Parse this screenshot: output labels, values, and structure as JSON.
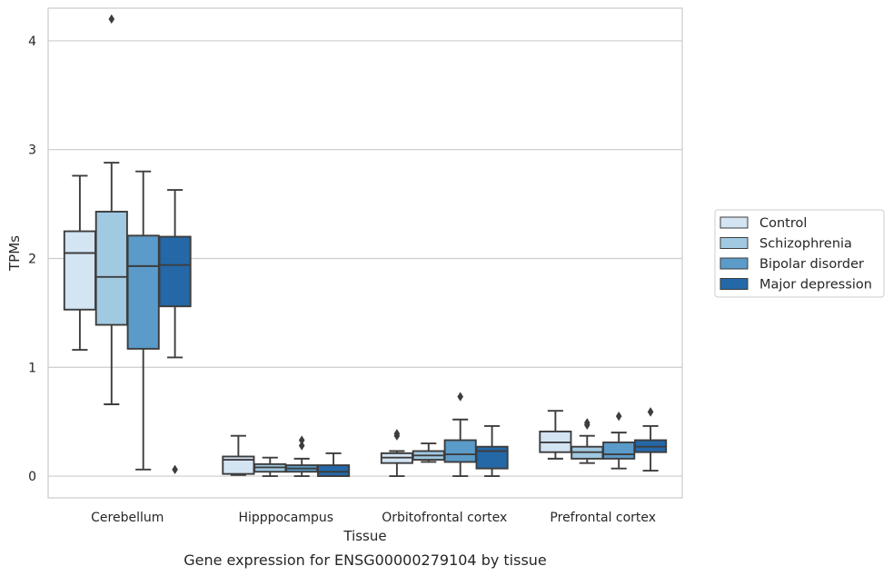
{
  "chart_data": {
    "type": "box",
    "title": "Gene expression for ENSG00000279104 by tissue",
    "xlabel": "Tissue",
    "ylabel": "TPMs",
    "ylim": [
      -0.2,
      4.3
    ],
    "yticks": [
      0,
      1,
      2,
      3,
      4
    ],
    "grid": true,
    "legend_position": "right",
    "categories": [
      "Cerebellum",
      "Hipppocampus",
      "Orbitofrontal cortex",
      "Prefrontal cortex"
    ],
    "series": [
      {
        "name": "Control",
        "color": "#d3e4f3",
        "boxes": [
          {
            "whisker_low": 1.16,
            "q1": 1.53,
            "median": 2.05,
            "q3": 2.25,
            "whisker_high": 2.76,
            "outliers": []
          },
          {
            "whisker_low": 0.01,
            "q1": 0.02,
            "median": 0.15,
            "q3": 0.18,
            "whisker_high": 0.37,
            "outliers": []
          },
          {
            "whisker_low": 0.0,
            "q1": 0.12,
            "median": 0.17,
            "q3": 0.21,
            "whisker_high": 0.23,
            "outliers": [
              0.37,
              0.39
            ]
          },
          {
            "whisker_low": 0.16,
            "q1": 0.22,
            "median": 0.31,
            "q3": 0.41,
            "whisker_high": 0.6,
            "outliers": []
          }
        ]
      },
      {
        "name": "Schizophrenia",
        "color": "#a1c9e1",
        "boxes": [
          {
            "whisker_low": 0.66,
            "q1": 1.39,
            "median": 1.83,
            "q3": 2.43,
            "whisker_high": 2.88,
            "outliers": [
              4.2
            ]
          },
          {
            "whisker_low": 0.0,
            "q1": 0.04,
            "median": 0.08,
            "q3": 0.11,
            "whisker_high": 0.17,
            "outliers": []
          },
          {
            "whisker_low": 0.13,
            "q1": 0.15,
            "median": 0.19,
            "q3": 0.23,
            "whisker_high": 0.3,
            "outliers": []
          },
          {
            "whisker_low": 0.12,
            "q1": 0.16,
            "median": 0.22,
            "q3": 0.27,
            "whisker_high": 0.37,
            "outliers": [
              0.47,
              0.49
            ]
          }
        ]
      },
      {
        "name": "Bipolar disorder",
        "color": "#5a9bc9",
        "boxes": [
          {
            "whisker_low": 0.06,
            "q1": 1.17,
            "median": 1.93,
            "q3": 2.21,
            "whisker_high": 2.8,
            "outliers": []
          },
          {
            "whisker_low": 0.0,
            "q1": 0.04,
            "median": 0.07,
            "q3": 0.1,
            "whisker_high": 0.16,
            "outliers": [
              0.28,
              0.33
            ]
          },
          {
            "whisker_low": 0.0,
            "q1": 0.13,
            "median": 0.2,
            "q3": 0.33,
            "whisker_high": 0.52,
            "outliers": [
              0.73
            ]
          },
          {
            "whisker_low": 0.07,
            "q1": 0.16,
            "median": 0.2,
            "q3": 0.31,
            "whisker_high": 0.4,
            "outliers": [
              0.55
            ]
          }
        ]
      },
      {
        "name": "Major depression",
        "color": "#2468a8",
        "boxes": [
          {
            "whisker_low": 1.09,
            "q1": 1.56,
            "median": 1.94,
            "q3": 2.2,
            "whisker_high": 2.63,
            "outliers": [
              0.06
            ]
          },
          {
            "whisker_low": 0.0,
            "q1": 0.0,
            "median": 0.04,
            "q3": 0.1,
            "whisker_high": 0.21,
            "outliers": []
          },
          {
            "whisker_low": 0.0,
            "q1": 0.07,
            "median": 0.23,
            "q3": 0.27,
            "whisker_high": 0.46,
            "outliers": []
          },
          {
            "whisker_low": 0.05,
            "q1": 0.22,
            "median": 0.27,
            "q3": 0.33,
            "whisker_high": 0.46,
            "outliers": [
              0.59
            ]
          }
        ]
      }
    ]
  }
}
